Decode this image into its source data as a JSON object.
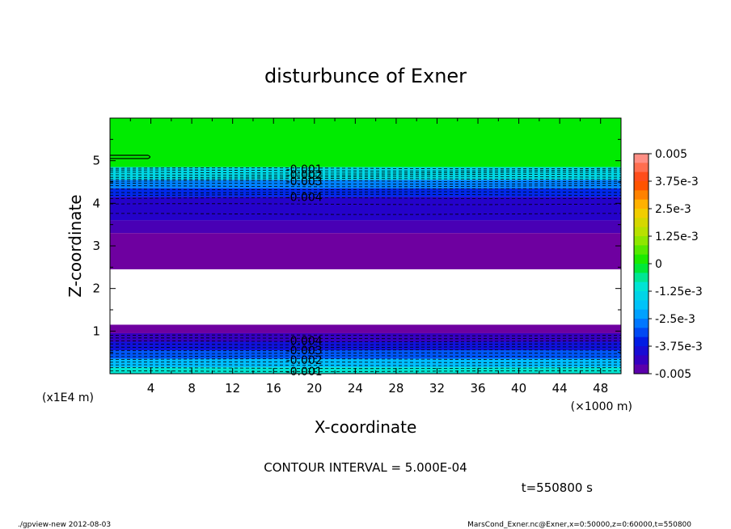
{
  "chart_data": {
    "type": "heatmap",
    "title": "disturbunce of Exner",
    "xlabel": "X-coordinate",
    "ylabel": "Z-coordinate",
    "x_scale_note": "(×1000 m)",
    "y_scale_note": "(x1E4 m)",
    "xlim": [
      0,
      50
    ],
    "ylim": [
      0,
      6
    ],
    "x_ticks": [
      4,
      8,
      12,
      16,
      20,
      24,
      28,
      32,
      36,
      40,
      44,
      48
    ],
    "y_ticks": [
      1,
      2,
      3,
      4,
      5
    ],
    "colorbar": {
      "labels": [
        "0.005",
        "3.75e-3",
        "2.5e-3",
        "1.25e-3",
        "0",
        "-1.25e-3",
        "-2.5e-3",
        "-3.75e-3",
        "-0.005"
      ],
      "range": [
        -0.005,
        0.005
      ]
    },
    "bands": [
      {
        "z0": 4.85,
        "z1": 6.0,
        "value": 0.0
      },
      {
        "z0": 4.55,
        "z1": 4.85,
        "value": -0.0014
      },
      {
        "z0": 4.35,
        "z1": 4.55,
        "value": -0.0026
      },
      {
        "z0": 4.15,
        "z1": 4.35,
        "value": -0.0034
      },
      {
        "z0": 3.6,
        "z1": 4.15,
        "value": -0.0042
      },
      {
        "z0": 3.3,
        "z1": 3.6,
        "value": -0.0046
      },
      {
        "z0": 2.45,
        "z1": 3.3,
        "value": -0.005
      },
      {
        "z0": 1.15,
        "z1": 2.45,
        "value": null
      },
      {
        "z0": 0.95,
        "z1": 1.15,
        "value": -0.005
      },
      {
        "z0": 0.75,
        "z1": 0.95,
        "value": -0.0044
      },
      {
        "z0": 0.55,
        "z1": 0.75,
        "value": -0.0038
      },
      {
        "z0": 0.35,
        "z1": 0.55,
        "value": -0.003
      },
      {
        "z0": 0.15,
        "z1": 0.35,
        "value": -0.002
      },
      {
        "z0": 0.0,
        "z1": 0.15,
        "value": -0.001
      }
    ],
    "contour_labels": [
      {
        "text": "-0.001",
        "x": 19,
        "z": 4.8
      },
      {
        "text": "-0.002",
        "x": 19,
        "z": 4.67
      },
      {
        "text": "-0.003",
        "x": 19,
        "z": 4.52
      },
      {
        "text": "-0.004",
        "x": 19,
        "z": 4.15
      },
      {
        "text": "-0.004",
        "x": 19,
        "z": 0.78
      },
      {
        "text": "-0.003",
        "x": 19,
        "z": 0.55
      },
      {
        "text": "-0.002",
        "x": 19,
        "z": 0.32
      },
      {
        "text": "-0.001",
        "x": 19,
        "z": 0.06
      }
    ],
    "upper_contour_levels_z": [
      4.82,
      4.77,
      4.72,
      4.67,
      4.62,
      4.57,
      4.52,
      4.46,
      4.4,
      4.33,
      4.26,
      4.2,
      4.12,
      3.98,
      3.75
    ],
    "lower_contour_levels_z": [
      0.9,
      0.83,
      0.76,
      0.69,
      0.62,
      0.55,
      0.48,
      0.41,
      0.34,
      0.27,
      0.2,
      0.13,
      0.06
    ]
  },
  "annotations": {
    "contour_interval": "CONTOUR INTERVAL = 5.000E-04",
    "time": "t=550800 s",
    "footer_left": "./gpview-new   2012-08-03",
    "footer_right": "MarsCond_Exner.nc@Exner,x=0:50000,z=0:60000,t=550800"
  }
}
